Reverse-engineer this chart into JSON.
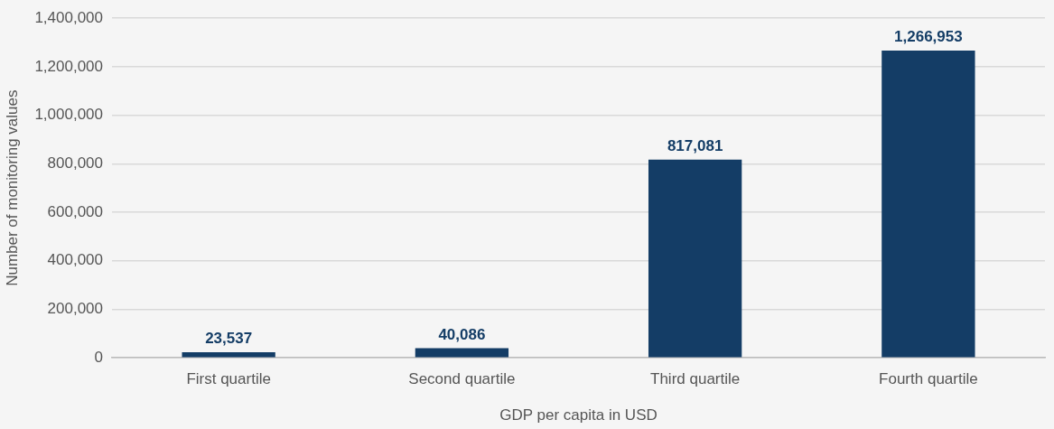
{
  "chart_data": {
    "type": "bar",
    "xlabel": "GDP per capita in USD",
    "ylabel": "Number of monitoring values",
    "categories": [
      "First quartile",
      "Second quartile",
      "Third quartile",
      "Fourth quartile"
    ],
    "values": [
      23537,
      40086,
      817081,
      1266953
    ],
    "value_labels": [
      "23,537",
      "40,086",
      "817,081",
      "1,266,953"
    ],
    "color": "#143d66",
    "ylim": [
      0,
      1400000
    ],
    "yticks": [
      0,
      {
        "value": 200000,
        "label": "200,000"
      },
      {
        "value": 400000,
        "label": "400,000"
      },
      {
        "value": 600000,
        "label": "600,000"
      },
      {
        "value": 800000,
        "label": "800,000"
      },
      {
        "value": 1000000,
        "label": "1,000,000"
      },
      {
        "value": 1200000,
        "label": "1,200,000"
      },
      {
        "value": 1400000,
        "label": "1,400,000"
      }
    ],
    "grid": "y",
    "legend": false
  }
}
